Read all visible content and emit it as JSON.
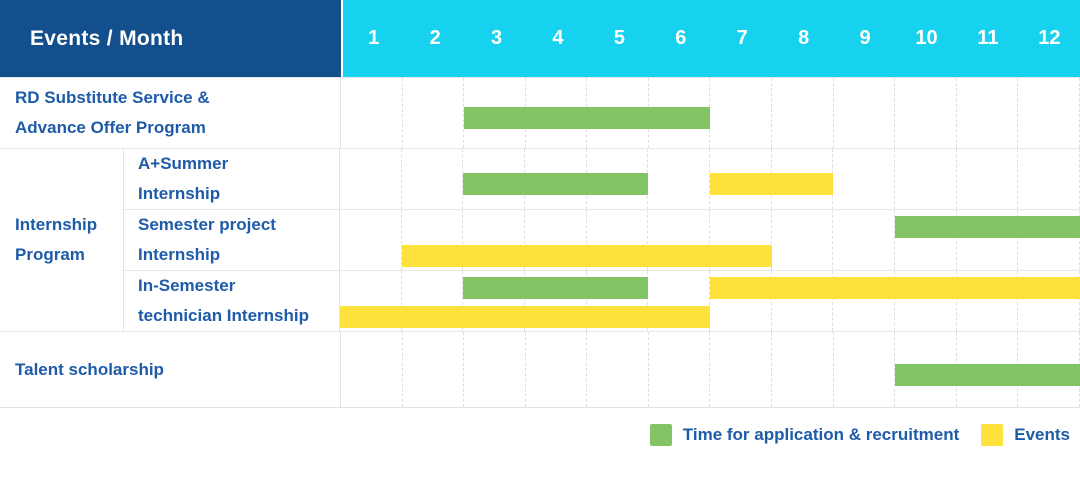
{
  "header": {
    "title": "Events / Month",
    "months": [
      "1",
      "2",
      "3",
      "4",
      "5",
      "6",
      "7",
      "8",
      "9",
      "10",
      "11",
      "12"
    ]
  },
  "sections": [
    {
      "kind": "single",
      "label_lines": [
        "RD Substitute Service &",
        "Advance Offer Program"
      ],
      "lines": 1,
      "bars": [
        {
          "color": "green",
          "start": 3,
          "end": 6,
          "line": 0
        }
      ]
    },
    {
      "kind": "group",
      "label_lines": [
        "Internship",
        "Program"
      ],
      "rows": [
        {
          "label_lines": [
            "A+Summer",
            "Internship"
          ],
          "lines": 1,
          "bars": [
            {
              "color": "green",
              "start": 3,
              "end": 5,
              "line": 0
            },
            {
              "color": "yellow",
              "start": 7,
              "end": 8,
              "line": 0
            }
          ]
        },
        {
          "label_lines": [
            "Semester project",
            "Internship"
          ],
          "lines": 2,
          "bars": [
            {
              "color": "green",
              "start": 10,
              "end": 12,
              "line": 0
            },
            {
              "color": "yellow",
              "start": 2,
              "end": 7,
              "line": 1
            }
          ]
        },
        {
          "label_lines": [
            "In-Semester",
            "technician Internship"
          ],
          "lines": 2,
          "bars": [
            {
              "color": "green",
              "start": 3,
              "end": 5,
              "line": 0
            },
            {
              "color": "yellow",
              "start": 7,
              "end": 12,
              "line": 0
            },
            {
              "color": "yellow",
              "start": 1,
              "end": 6,
              "line": 1
            }
          ]
        }
      ]
    },
    {
      "kind": "single",
      "label_lines": [
        "Talent scholarship"
      ],
      "lines": 1,
      "bars": [
        {
          "color": "green",
          "start": 10,
          "end": 12,
          "line": 0
        }
      ]
    }
  ],
  "legend": [
    {
      "color": "green",
      "label": "Time for application & recruitment"
    },
    {
      "color": "yellow",
      "label": "Events"
    }
  ],
  "colors": {
    "header_bg": "#144F8D",
    "months_bg": "#17D2EE",
    "green": "#83C564",
    "yellow": "#FDE23B",
    "label_text": "#1E5BA9"
  },
  "chart_data": {
    "type": "gantt",
    "title": "Events / Month",
    "x_axis": {
      "label": "Month",
      "ticks": [
        1,
        2,
        3,
        4,
        5,
        6,
        7,
        8,
        9,
        10,
        11,
        12
      ],
      "range": [
        1,
        12
      ]
    },
    "grid": "dashed-vertical-per-month",
    "legend_position": "bottom-right",
    "series_meaning": {
      "green": "Time for application & recruitment",
      "yellow": "Events"
    },
    "rows": [
      {
        "group": null,
        "label": "RD Substitute Service & Advance Offer Program",
        "bars": [
          {
            "type": "application_recruitment",
            "months": [
              3,
              6
            ]
          }
        ]
      },
      {
        "group": "Internship Program",
        "label": "A+Summer Internship",
        "bars": [
          {
            "type": "application_recruitment",
            "months": [
              3,
              5
            ]
          },
          {
            "type": "event",
            "months": [
              7,
              8
            ]
          }
        ]
      },
      {
        "group": "Internship Program",
        "label": "Semester project Internship",
        "bars": [
          {
            "type": "application_recruitment",
            "months": [
              10,
              12
            ]
          },
          {
            "type": "event",
            "months": [
              2,
              7
            ]
          }
        ]
      },
      {
        "group": "Internship Program",
        "label": "In-Semester technician Internship",
        "bars": [
          {
            "type": "application_recruitment",
            "months": [
              3,
              5
            ]
          },
          {
            "type": "event",
            "months": [
              7,
              12
            ]
          },
          {
            "type": "event",
            "months": [
              1,
              6
            ]
          }
        ]
      },
      {
        "group": null,
        "label": "Talent scholarship",
        "bars": [
          {
            "type": "application_recruitment",
            "months": [
              10,
              12
            ]
          }
        ]
      }
    ]
  }
}
